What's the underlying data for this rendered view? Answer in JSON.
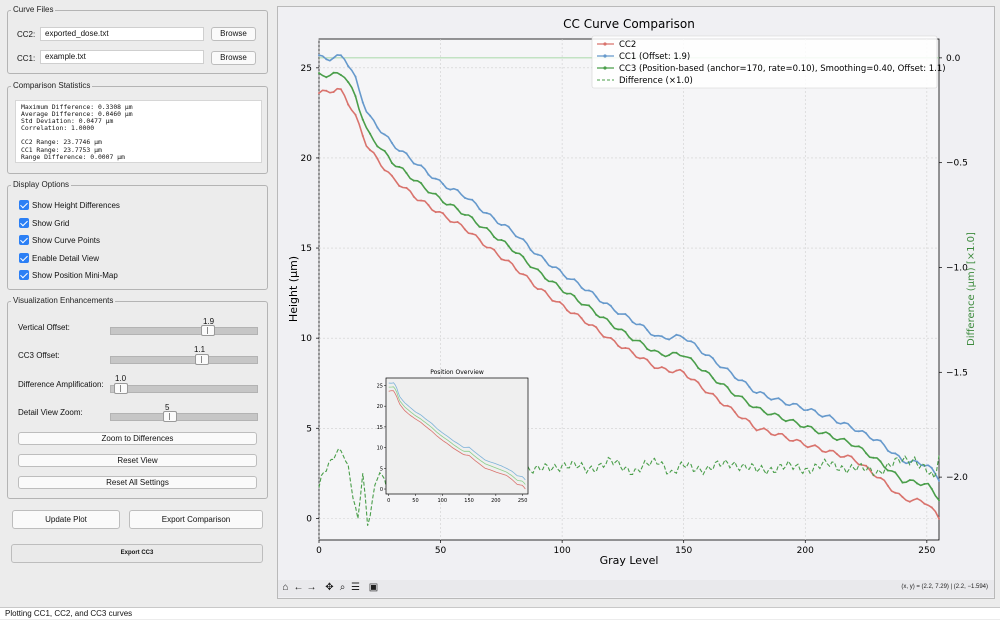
{
  "curve_files": {
    "title": "Curve Files",
    "cc2": {
      "label": "CC2:",
      "value": "exported_dose.txt",
      "browse": "Browse"
    },
    "cc1": {
      "label": "CC1:",
      "value": "example.txt",
      "browse": "Browse"
    }
  },
  "stats": {
    "title": "Comparison Statistics",
    "text": "Maximum Difference: 0.3308 µm\nAverage Difference: 0.0460 µm\nStd Deviation: 0.0477 µm\nCorrelation: 1.0000\n\nCC2 Range: 23.7746 µm\nCC1 Range: 23.7753 µm\nRange Difference: 0.0007 µm"
  },
  "display_options": {
    "title": "Display Options",
    "items": [
      {
        "label": "Show Height Differences",
        "checked": true
      },
      {
        "label": "Show Grid",
        "checked": true
      },
      {
        "label": "Show Curve Points",
        "checked": true
      },
      {
        "label": "Enable Detail View",
        "checked": true
      },
      {
        "label": "Show Position Mini-Map",
        "checked": true
      }
    ]
  },
  "visualization": {
    "title": "Visualization Enhancements",
    "sliders": [
      {
        "label": "Vertical Offset:",
        "value": "1.9",
        "fraction": 0.7
      },
      {
        "label": "CC3 Offset:",
        "value": "1.1",
        "fraction": 0.62
      },
      {
        "label": "Difference Amplification:",
        "value": "1.0",
        "fraction": 0.0
      },
      {
        "label": "Detail View Zoom:",
        "value": "5",
        "fraction": 0.4
      }
    ],
    "zoom_button": "Zoom to Differences",
    "reset_view": "Reset View",
    "reset_all": "Reset All Settings"
  },
  "actions": {
    "update_plot": "Update Plot",
    "export_comparison": "Export Comparison",
    "export_cc3": "Export CC3"
  },
  "status": "Plotting CC1, CC2, and CC3 curves",
  "toolbar": {
    "coords": "(x, y) = (2.2, 7.29) | (2.2, −1.594)",
    "icons": [
      "home-icon",
      "back-icon",
      "forward-icon",
      "pan-icon",
      "zoom-icon",
      "configure-icon",
      "save-icon"
    ]
  },
  "chart_data": {
    "type": "line",
    "title": "CC Curve Comparison",
    "xlabel": "Gray Level",
    "ylabel": "Height (µm)",
    "y2label": "Difference (µm) [×1.0]",
    "xlim": [
      0,
      255
    ],
    "ylim": [
      -1.2,
      26.6
    ],
    "y2lim": [
      -2.3,
      0.09
    ],
    "xticks": [
      "0",
      "50",
      "100",
      "150",
      "200",
      "250"
    ],
    "yticks": [
      "0",
      "5",
      "10",
      "15",
      "20",
      "25"
    ],
    "y2ticks": [
      "0.0",
      "−0.5",
      "−1.0",
      "−1.5",
      "−2.0"
    ],
    "legend": [
      "CC2",
      "CC1 (Offset: 1.9)",
      "CC3 (Position-based (anchor=170, rate=0.10), Smoothing=0.40, Offset: 1.1)",
      "Difference (×1.0)"
    ],
    "colors": {
      "cc2": "#d9736d",
      "cc1": "#6699cc",
      "cc3": "#4a9e4a",
      "diff": "#4a9e4a"
    },
    "series": [
      {
        "name": "CC2",
        "x": [
          0,
          8,
          10,
          15,
          20,
          30,
          40,
          50,
          60,
          70,
          80,
          90,
          100,
          110,
          120,
          130,
          140,
          150,
          160,
          170,
          180,
          190,
          200,
          210,
          220,
          230,
          240,
          250,
          255
        ],
        "values": [
          23.6,
          23.8,
          23.6,
          22.3,
          20.6,
          18.9,
          17.8,
          16.9,
          16.1,
          15.0,
          14.0,
          12.8,
          11.8,
          10.9,
          9.9,
          9.1,
          8.3,
          8.1,
          7.0,
          6.0,
          5.0,
          4.6,
          4.1,
          3.7,
          3.3,
          2.3,
          1.1,
          0.9,
          0.0
        ]
      },
      {
        "name": "CC1 (Offset: 1.9)",
        "x": [
          0,
          5,
          10,
          15,
          20,
          30,
          40,
          50,
          60,
          70,
          80,
          90,
          100,
          110,
          120,
          130,
          140,
          150,
          160,
          170,
          180,
          190,
          200,
          210,
          220,
          230,
          240,
          250,
          255
        ],
        "values": [
          25.6,
          25.5,
          25.7,
          24.4,
          22.4,
          20.8,
          19.7,
          18.6,
          17.9,
          16.8,
          15.9,
          14.6,
          13.6,
          12.7,
          11.7,
          10.9,
          10.0,
          10.1,
          9.0,
          8.0,
          7.0,
          6.5,
          6.1,
          5.6,
          5.0,
          4.3,
          3.2,
          3.0,
          2.2
        ]
      },
      {
        "name": "CC3",
        "x": [
          0,
          5,
          10,
          15,
          20,
          30,
          40,
          50,
          60,
          70,
          80,
          90,
          100,
          110,
          120,
          130,
          140,
          150,
          160,
          170,
          180,
          190,
          200,
          210,
          220,
          230,
          240,
          250,
          255
        ],
        "values": [
          24.6,
          24.6,
          24.7,
          23.4,
          21.4,
          19.8,
          18.7,
          17.7,
          16.9,
          15.9,
          14.9,
          13.7,
          12.7,
          11.8,
          10.8,
          9.9,
          9.1,
          9.1,
          8.0,
          7.0,
          6.1,
          5.6,
          5.1,
          4.6,
          4.1,
          3.2,
          2.1,
          1.9,
          1.1
        ]
      },
      {
        "name": "Difference (×1.0)",
        "x": [
          0,
          2,
          5,
          7,
          10,
          12,
          14,
          16,
          18,
          20,
          22,
          25,
          28,
          30,
          35,
          40,
          45,
          50,
          60,
          70,
          80,
          90,
          100,
          110,
          120,
          130,
          140,
          145,
          150,
          160,
          170,
          180,
          190,
          200,
          210,
          220,
          230,
          240,
          245,
          250,
          253,
          255
        ],
        "values": [
          -2.05,
          -1.98,
          -1.94,
          -1.88,
          -1.87,
          -1.95,
          -2.08,
          -2.22,
          -1.98,
          -2.25,
          -2.1,
          -1.95,
          -2.05,
          -1.98,
          -1.93,
          -1.97,
          -1.95,
          -1.98,
          -1.94,
          -1.96,
          -1.95,
          -1.97,
          -1.94,
          -1.96,
          -1.93,
          -1.97,
          -1.92,
          -1.98,
          -1.95,
          -1.96,
          -1.93,
          -1.97,
          -1.95,
          -1.96,
          -1.94,
          -1.96,
          -1.97,
          -1.92,
          -1.91,
          -1.97,
          -2.02,
          -1.9
        ]
      }
    ],
    "inset": {
      "title": "Position Overview",
      "xticks": [
        "0",
        "50",
        "100",
        "150",
        "200",
        "250"
      ],
      "yticks": [
        "0",
        "5",
        "10",
        "15",
        "20",
        "25"
      ]
    }
  }
}
